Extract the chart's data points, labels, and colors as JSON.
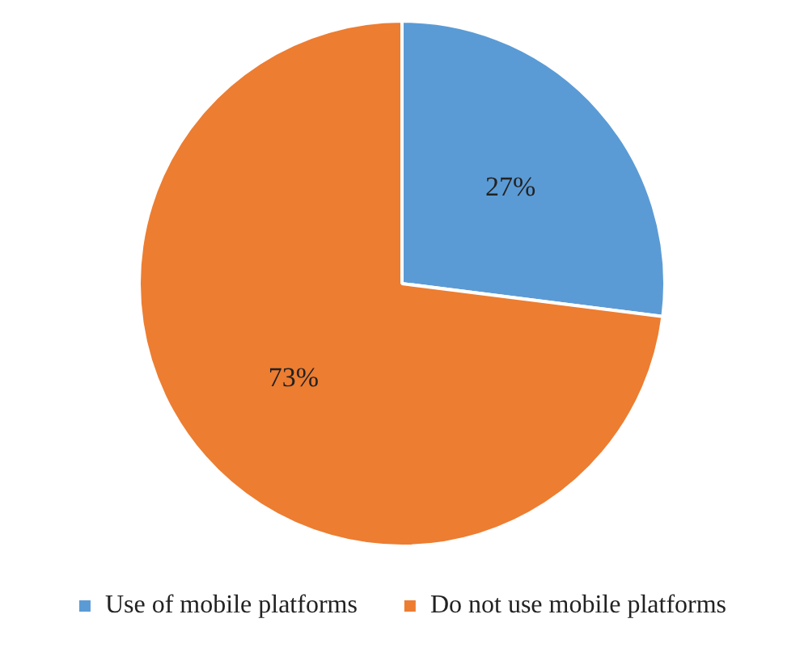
{
  "chart_data": {
    "type": "pie",
    "categories": [
      "Use of mobile platforms",
      "Do not use mobile platforms"
    ],
    "values": [
      27,
      73
    ],
    "colors": [
      "#5b9bd5",
      "#ed7d31"
    ],
    "value_labels": [
      "27%",
      "73%"
    ],
    "legend": "bottom"
  }
}
